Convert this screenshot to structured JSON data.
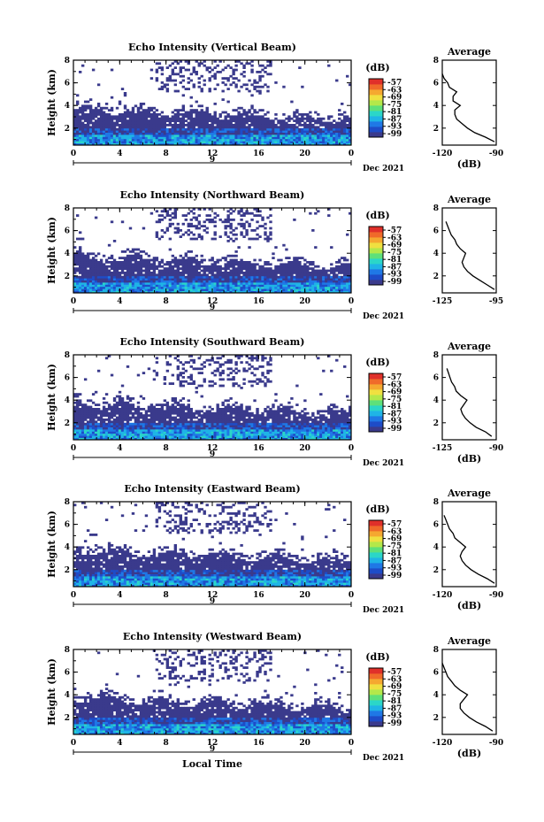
{
  "figure": {
    "xlabel": "Local Time",
    "date_label": "Dec 2021",
    "ylabel": "Height (km)",
    "colorbar_unit": "(dB)",
    "profile_title": "Average",
    "profile_xlabel": "(dB)",
    "colorbar_ticks": [
      "-57",
      "-63",
      "-69",
      "-75",
      "-81",
      "-87",
      "-93",
      "-99"
    ],
    "colors": [
      "#3a3a8c",
      "#1e4cc8",
      "#1f78e6",
      "#1fb4e6",
      "#2bd6c8",
      "#5ee07a",
      "#b4e84a",
      "#f0e040",
      "#f5a830",
      "#f06a2a",
      "#e0302a"
    ]
  },
  "chart_data": [
    {
      "type": "heatmap",
      "title": "Echo Intensity (Vertical Beam)",
      "xlabel": "Local Time",
      "ylabel": "Height (km)",
      "x_ticks": [
        "0",
        "4",
        "8",
        "12",
        "16",
        "20",
        "0"
      ],
      "x_day_label": "9",
      "date_label": "Dec 2021",
      "y_ticks": [
        "2",
        "4",
        "6",
        "8"
      ],
      "ylim": [
        0.5,
        8
      ],
      "colorbar": {
        "unit": "dB",
        "min": -99,
        "max": -57,
        "ticks": [
          -57,
          -63,
          -69,
          -75,
          -81,
          -87,
          -93,
          -99
        ]
      },
      "profile": {
        "title": "Average",
        "xlabel": "(dB)",
        "x_ticks": [
          "-120",
          "-90"
        ],
        "xlim": [
          -120,
          -90
        ],
        "y_ticks": [
          "2",
          "4",
          "6",
          "8"
        ],
        "ylim": [
          0.5,
          8
        ],
        "height": [
          0.8,
          1.2,
          1.6,
          2,
          2.4,
          2.8,
          3.2,
          3.6,
          4,
          4.4,
          4.8,
          5.2,
          5.6,
          6,
          6.4,
          6.8
        ],
        "db": [
          -91,
          -96,
          -102,
          -106,
          -109,
          -112,
          -113,
          -113,
          -110,
          -114,
          -114,
          -112,
          -116,
          -117,
          -119,
          -120
        ]
      }
    },
    {
      "type": "heatmap",
      "title": "Echo Intensity (Northward Beam)",
      "xlabel": "Local Time",
      "ylabel": "Height (km)",
      "x_ticks": [
        "0",
        "4",
        "8",
        "12",
        "16",
        "20",
        "0"
      ],
      "x_day_label": "9",
      "date_label": "Dec 2021",
      "y_ticks": [
        "2",
        "4",
        "6",
        "8"
      ],
      "ylim": [
        0.5,
        8
      ],
      "colorbar": {
        "unit": "dB",
        "min": -99,
        "max": -57,
        "ticks": [
          -57,
          -63,
          -69,
          -75,
          -81,
          -87,
          -93,
          -99
        ]
      },
      "profile": {
        "title": "Average",
        "xlabel": "",
        "x_ticks": [
          "-125",
          "-95"
        ],
        "xlim": [
          -125,
          -95
        ],
        "y_ticks": [
          "2",
          "4",
          "6",
          "8"
        ],
        "ylim": [
          0.5,
          8
        ],
        "height": [
          0.8,
          1.2,
          1.6,
          2,
          2.4,
          2.8,
          3.2,
          3.6,
          4,
          4.4,
          4.8,
          5.2,
          5.6,
          6,
          6.4,
          6.8
        ],
        "db": [
          -96,
          -100,
          -104,
          -108,
          -111,
          -113,
          -114,
          -113,
          -112,
          -115,
          -117,
          -118,
          -120,
          -121,
          -122,
          -123
        ]
      }
    },
    {
      "type": "heatmap",
      "title": "Echo Intensity (Southward Beam)",
      "xlabel": "Local Time",
      "ylabel": "Height (km)",
      "x_ticks": [
        "0",
        "4",
        "8",
        "12",
        "16",
        "20",
        "0"
      ],
      "x_day_label": "9",
      "date_label": "Dec 2021",
      "y_ticks": [
        "2",
        "4",
        "6",
        "8"
      ],
      "ylim": [
        0.5,
        8
      ],
      "colorbar": {
        "unit": "dB",
        "min": -99,
        "max": -57,
        "ticks": [
          -57,
          -63,
          -69,
          -75,
          -81,
          -87,
          -93,
          -99
        ]
      },
      "profile": {
        "title": "Average",
        "xlabel": "(dB)",
        "x_ticks": [
          "-125",
          "-90"
        ],
        "xlim": [
          -125,
          -90
        ],
        "y_ticks": [
          "2",
          "4",
          "6",
          "8"
        ],
        "ylim": [
          0.5,
          8
        ],
        "height": [
          0.8,
          1.2,
          1.6,
          2,
          2.4,
          2.8,
          3.2,
          3.6,
          4,
          4.4,
          4.8,
          5.2,
          5.6,
          6,
          6.4,
          6.8
        ],
        "db": [
          -93,
          -97,
          -103,
          -107,
          -110,
          -112,
          -113,
          -111,
          -109,
          -113,
          -116,
          -117,
          -119,
          -120,
          -121,
          -122
        ]
      }
    },
    {
      "type": "heatmap",
      "title": "Echo Intensity (Eastward Beam)",
      "xlabel": "Local Time",
      "ylabel": "Height (km)",
      "x_ticks": [
        "0",
        "4",
        "8",
        "12",
        "16",
        "20",
        "0"
      ],
      "x_day_label": "9",
      "date_label": "Dec 2021",
      "y_ticks": [
        "2",
        "4",
        "6",
        "8"
      ],
      "ylim": [
        0.5,
        8
      ],
      "colorbar": {
        "unit": "dB",
        "min": -99,
        "max": -57,
        "ticks": [
          -57,
          -63,
          -69,
          -75,
          -81,
          -87,
          -93,
          -99
        ]
      },
      "profile": {
        "title": "Average",
        "xlabel": "(dB)",
        "x_ticks": [
          "-120",
          "-90"
        ],
        "xlim": [
          -120,
          -90
        ],
        "y_ticks": [
          "2",
          "4",
          "6",
          "8"
        ],
        "ylim": [
          0.5,
          8
        ],
        "height": [
          0.8,
          1.2,
          1.6,
          2,
          2.4,
          2.8,
          3.2,
          3.6,
          4,
          4.4,
          4.8,
          5.2,
          5.6,
          6,
          6.4,
          6.8
        ],
        "db": [
          -91,
          -95,
          -100,
          -104,
          -107,
          -109,
          -110,
          -109,
          -107,
          -110,
          -113,
          -114,
          -116,
          -117,
          -118,
          -119
        ]
      }
    },
    {
      "type": "heatmap",
      "title": "Echo Intensity (Westward Beam)",
      "xlabel": "Local Time",
      "ylabel": "Height (km)",
      "x_ticks": [
        "0",
        "4",
        "8",
        "12",
        "16",
        "20",
        "0"
      ],
      "x_day_label": "9",
      "date_label": "Dec 2021",
      "y_ticks": [
        "2",
        "4",
        "6",
        "8"
      ],
      "ylim": [
        0.5,
        8
      ],
      "colorbar": {
        "unit": "dB",
        "min": -99,
        "max": -57,
        "ticks": [
          -57,
          -63,
          -69,
          -75,
          -81,
          -87,
          -93,
          -99
        ]
      },
      "profile": {
        "title": "Average",
        "xlabel": "(dB)",
        "x_ticks": [
          "-120",
          "-90"
        ],
        "xlim": [
          -120,
          -90
        ],
        "y_ticks": [
          "2",
          "4",
          "6",
          "8"
        ],
        "ylim": [
          0.5,
          8
        ],
        "height": [
          0.8,
          1.2,
          1.6,
          2,
          2.4,
          2.8,
          3.2,
          3.6,
          4,
          4.4,
          4.8,
          5.2,
          5.6,
          6,
          6.4,
          6.8
        ],
        "db": [
          -92,
          -96,
          -101,
          -105,
          -108,
          -110,
          -110,
          -108,
          -106,
          -110,
          -113,
          -115,
          -117,
          -118,
          -119,
          -120
        ]
      }
    }
  ]
}
